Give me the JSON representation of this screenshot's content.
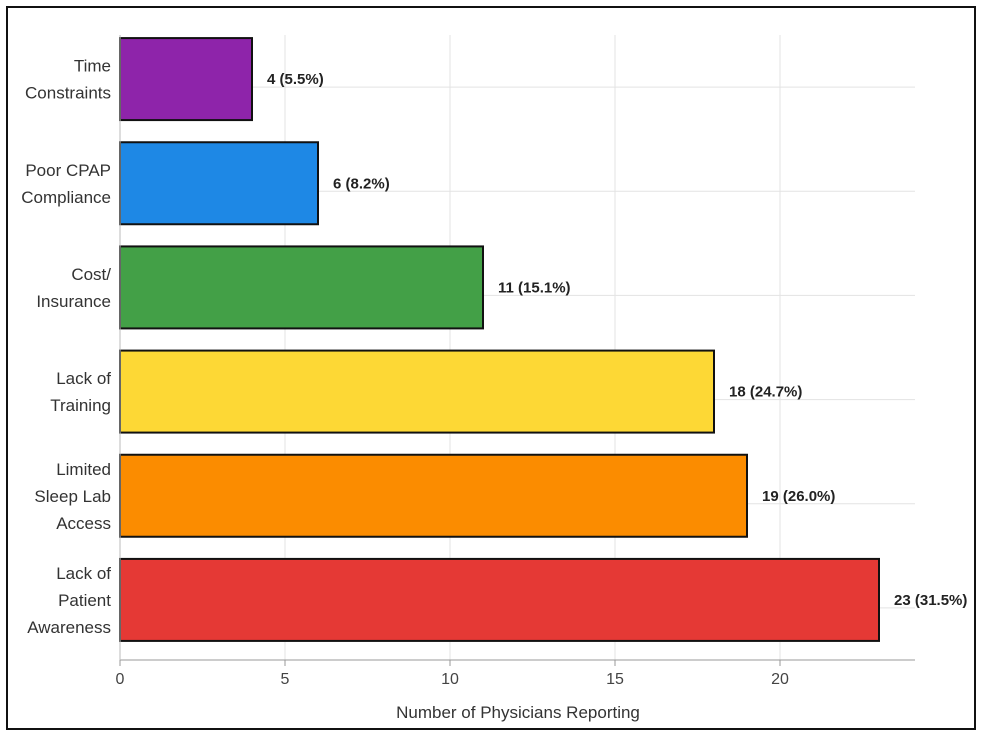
{
  "chart_data": {
    "type": "bar",
    "orientation": "horizontal",
    "categories": [
      [
        "Time",
        "Constraints"
      ],
      [
        "Poor CPAP",
        "Compliance"
      ],
      [
        "Cost/",
        "Insurance"
      ],
      [
        "Lack of",
        "Training"
      ],
      [
        "Limited",
        "Sleep Lab",
        "Access"
      ],
      [
        "Lack of",
        "Patient",
        "Awareness"
      ]
    ],
    "values": [
      4,
      6,
      11,
      18,
      19,
      23
    ],
    "data_labels": [
      "4 (5.5%)",
      "6 (8.2%)",
      "11 (15.1%)",
      "18 (24.7%)",
      "19 (26.0%)",
      "23 (31.5%)"
    ],
    "colors": [
      "#8e24aa",
      "#1e88e5",
      "#43a047",
      "#fdd835",
      "#fb8c00",
      "#e53935"
    ],
    "xlabel": "Number of Physicians Reporting",
    "ylabel": "",
    "title": "",
    "xlim": [
      0,
      24
    ],
    "xticks": [
      0,
      5,
      10,
      15,
      20
    ],
    "grid": true
  }
}
